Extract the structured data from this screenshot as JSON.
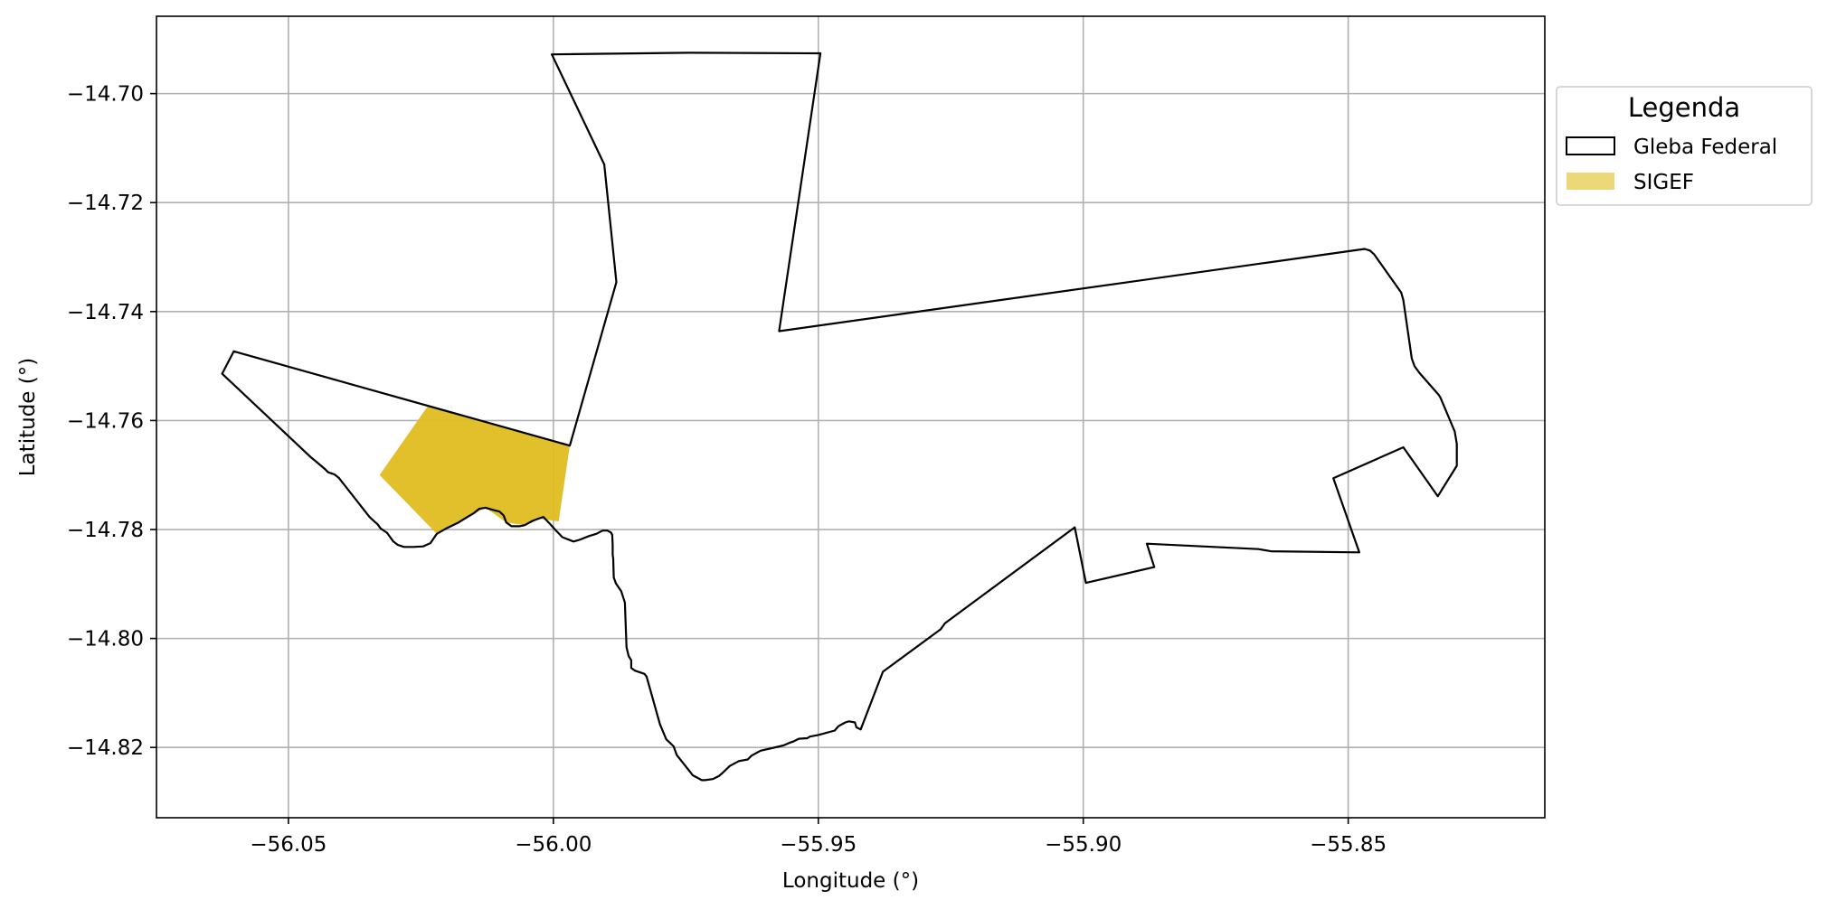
{
  "chart_data": {
    "type": "map",
    "xlabel": "Longitude (°)",
    "ylabel": "Latitude (°)",
    "xlim": [
      -56.0749,
      -55.8129
    ],
    "ylim": [
      -14.8329,
      -14.6858
    ],
    "xticks": [
      -56.05,
      -56.0,
      -55.95,
      -55.9,
      -55.85
    ],
    "xtick_labels": [
      "−56.05",
      "−56.00",
      "−55.95",
      "−55.90",
      "−55.85"
    ],
    "yticks": [
      -14.7,
      -14.72,
      -14.74,
      -14.76,
      -14.78,
      -14.8,
      -14.82
    ],
    "ytick_labels": [
      "−14.70",
      "−14.72",
      "−14.74",
      "−14.76",
      "−14.78",
      "−14.80",
      "−14.82"
    ],
    "grid": true,
    "legend": {
      "title": "Legenda",
      "placement": "upper right, outside plot",
      "entries": [
        {
          "label": "Gleba Federal",
          "style": "outline",
          "edge": "#000000",
          "fill": "none"
        },
        {
          "label": "SIGEF",
          "style": "fill",
          "fill": "#dfbd20",
          "opacity": 0.6
        }
      ]
    },
    "layers": [
      {
        "name": "Gleba Federal",
        "edge": "#000000",
        "coords": [
          [
            -56.0003,
            -14.6928
          ],
          [
            -55.9744,
            -14.6925
          ],
          [
            -55.9496,
            -14.6926
          ],
          [
            -55.9574,
            -14.7436
          ],
          [
            -55.8469,
            -14.7285
          ],
          [
            -55.8459,
            -14.7288
          ],
          [
            -55.8451,
            -14.7295
          ],
          [
            -55.84,
            -14.7365
          ],
          [
            -55.8396,
            -14.7379
          ],
          [
            -55.838,
            -14.7486
          ],
          [
            -55.8375,
            -14.75
          ],
          [
            -55.8366,
            -14.7512
          ],
          [
            -55.8329,
            -14.7553
          ],
          [
            -55.8326,
            -14.7558
          ],
          [
            -55.8299,
            -14.762
          ],
          [
            -55.8295,
            -14.7643
          ],
          [
            -55.8295,
            -14.7683
          ],
          [
            -55.8331,
            -14.7739
          ],
          [
            -55.8396,
            -14.7649
          ],
          [
            -55.8528,
            -14.7706
          ],
          [
            -55.8479,
            -14.7842
          ],
          [
            -55.8646,
            -14.784
          ],
          [
            -55.8669,
            -14.7836
          ],
          [
            -55.888,
            -14.7826
          ],
          [
            -55.8866,
            -14.7869
          ],
          [
            -55.8995,
            -14.7898
          ],
          [
            -55.9016,
            -14.7796
          ],
          [
            -55.9261,
            -14.7972
          ],
          [
            -55.9269,
            -14.7983
          ],
          [
            -55.9378,
            -14.8061
          ],
          [
            -55.942,
            -14.8167
          ],
          [
            -55.9428,
            -14.8163
          ],
          [
            -55.9431,
            -14.8154
          ],
          [
            -55.9442,
            -14.8152
          ],
          [
            -55.9449,
            -14.8154
          ],
          [
            -55.9462,
            -14.8161
          ],
          [
            -55.9469,
            -14.8169
          ],
          [
            -55.9499,
            -14.8177
          ],
          [
            -55.9516,
            -14.818
          ],
          [
            -55.9521,
            -14.8183
          ],
          [
            -55.9537,
            -14.8184
          ],
          [
            -55.9547,
            -14.8189
          ],
          [
            -55.9553,
            -14.8191
          ],
          [
            -55.9565,
            -14.8196
          ],
          [
            -55.9573,
            -14.8198
          ],
          [
            -55.9609,
            -14.8206
          ],
          [
            -55.9626,
            -14.8215
          ],
          [
            -55.9633,
            -14.8222
          ],
          [
            -55.965,
            -14.8225
          ],
          [
            -55.9667,
            -14.8234
          ],
          [
            -55.968,
            -14.8246
          ],
          [
            -55.9687,
            -14.8252
          ],
          [
            -55.9699,
            -14.8258
          ],
          [
            -55.9714,
            -14.826
          ],
          [
            -55.972,
            -14.826
          ],
          [
            -55.9737,
            -14.8251
          ],
          [
            -55.9745,
            -14.8241
          ],
          [
            -55.9767,
            -14.8214
          ],
          [
            -55.9773,
            -14.8198
          ],
          [
            -55.9787,
            -14.8185
          ],
          [
            -55.9799,
            -14.8157
          ],
          [
            -55.9824,
            -14.807
          ],
          [
            -55.9828,
            -14.8065
          ],
          [
            -55.9846,
            -14.8059
          ],
          [
            -55.9853,
            -14.8054
          ],
          [
            -55.9853,
            -14.804
          ],
          [
            -55.9858,
            -14.8032
          ],
          [
            -55.9862,
            -14.8016
          ],
          [
            -55.9865,
            -14.7934
          ],
          [
            -55.9872,
            -14.7913
          ],
          [
            -55.9882,
            -14.7899
          ],
          [
            -55.9886,
            -14.7888
          ],
          [
            -55.9887,
            -14.7853
          ],
          [
            -55.9888,
            -14.7846
          ],
          [
            -55.9888,
            -14.7828
          ],
          [
            -55.9889,
            -14.781
          ],
          [
            -55.9891,
            -14.7806
          ],
          [
            -55.9898,
            -14.7802
          ],
          [
            -55.9907,
            -14.7802
          ],
          [
            -55.9919,
            -14.7808
          ],
          [
            -55.9933,
            -14.7812
          ],
          [
            -55.9951,
            -14.7819
          ],
          [
            -55.9962,
            -14.7822
          ],
          [
            -55.9983,
            -14.7814
          ],
          [
            -55.9997,
            -14.78
          ],
          [
            -56.0007,
            -14.7789
          ],
          [
            -56.0019,
            -14.7777
          ],
          [
            -56.0028,
            -14.778
          ],
          [
            -56.0039,
            -14.7784
          ],
          [
            -56.0054,
            -14.7792
          ],
          [
            -56.0064,
            -14.7794
          ],
          [
            -56.0079,
            -14.7794
          ],
          [
            -56.0089,
            -14.7787
          ],
          [
            -56.0094,
            -14.7774
          ],
          [
            -56.0102,
            -14.7767
          ],
          [
            -56.011,
            -14.7765
          ],
          [
            -56.0128,
            -14.776
          ],
          [
            -56.014,
            -14.7762
          ],
          [
            -56.015,
            -14.777
          ],
          [
            -56.0162,
            -14.7777
          ],
          [
            -56.0179,
            -14.7787
          ],
          [
            -56.02,
            -14.7797
          ],
          [
            -56.022,
            -14.7808
          ],
          [
            -56.0232,
            -14.7825
          ],
          [
            -56.0246,
            -14.7831
          ],
          [
            -56.0264,
            -14.7832
          ],
          [
            -56.0282,
            -14.7832
          ],
          [
            -56.0294,
            -14.7828
          ],
          [
            -56.0302,
            -14.7822
          ],
          [
            -56.0314,
            -14.7806
          ],
          [
            -56.0326,
            -14.7798
          ],
          [
            -56.0332,
            -14.779
          ],
          [
            -56.0337,
            -14.7786
          ],
          [
            -56.0347,
            -14.7777
          ],
          [
            -56.0405,
            -14.7705
          ],
          [
            -56.0413,
            -14.7699
          ],
          [
            -56.0425,
            -14.7695
          ],
          [
            -56.0431,
            -14.7689
          ],
          [
            -56.0448,
            -14.7675
          ],
          [
            -56.0457,
            -14.7668
          ],
          [
            -56.0625,
            -14.7514
          ],
          [
            -56.0603,
            -14.7473
          ],
          [
            -55.9969,
            -14.7646
          ],
          [
            -55.9881,
            -14.7346
          ],
          [
            -55.9904,
            -14.713
          ],
          [
            -56.0003,
            -14.6928
          ]
        ]
      },
      {
        "name": "SIGEF",
        "fill": "#dfbd20",
        "opacity": 0.6,
        "coords": [
          [
            -56.0236,
            -14.7572
          ],
          [
            -55.9969,
            -14.7646
          ],
          [
            -55.999,
            -14.7785
          ],
          [
            -56.0028,
            -14.778
          ],
          [
            -56.0054,
            -14.7792
          ],
          [
            -56.0089,
            -14.7787
          ],
          [
            -56.0128,
            -14.776
          ],
          [
            -56.02,
            -14.7797
          ],
          [
            -56.022,
            -14.7808
          ],
          [
            -56.0328,
            -14.77
          ],
          [
            -56.0236,
            -14.7572
          ]
        ]
      }
    ]
  }
}
